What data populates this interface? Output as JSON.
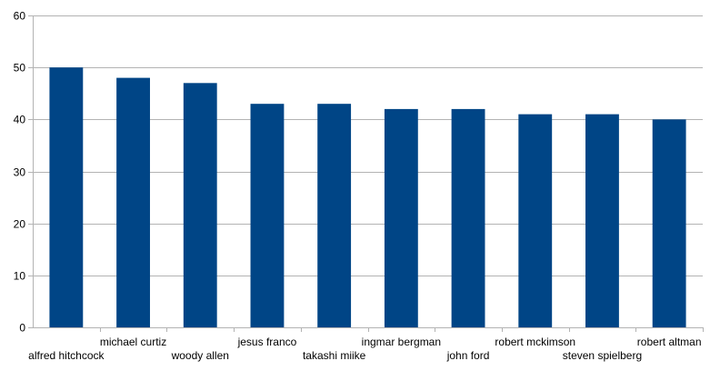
{
  "chart_data": {
    "type": "bar",
    "title": "",
    "xlabel": "",
    "ylabel": "",
    "categories": [
      "alfred hitchcock",
      "michael curtiz",
      "woody allen",
      "jesus franco",
      "takashi miike",
      "ingmar bergman",
      "john ford",
      "robert mckimson",
      "steven spielberg",
      "robert altman"
    ],
    "values": [
      50,
      48,
      47,
      43,
      43,
      42,
      42,
      41,
      41,
      40
    ],
    "ylim": [
      0,
      60
    ],
    "yticks": [
      0,
      10,
      20,
      30,
      40,
      50,
      60
    ],
    "grid": true,
    "legend": "none",
    "bar_color": "#004586",
    "grid_color": "#b3b3b3"
  }
}
